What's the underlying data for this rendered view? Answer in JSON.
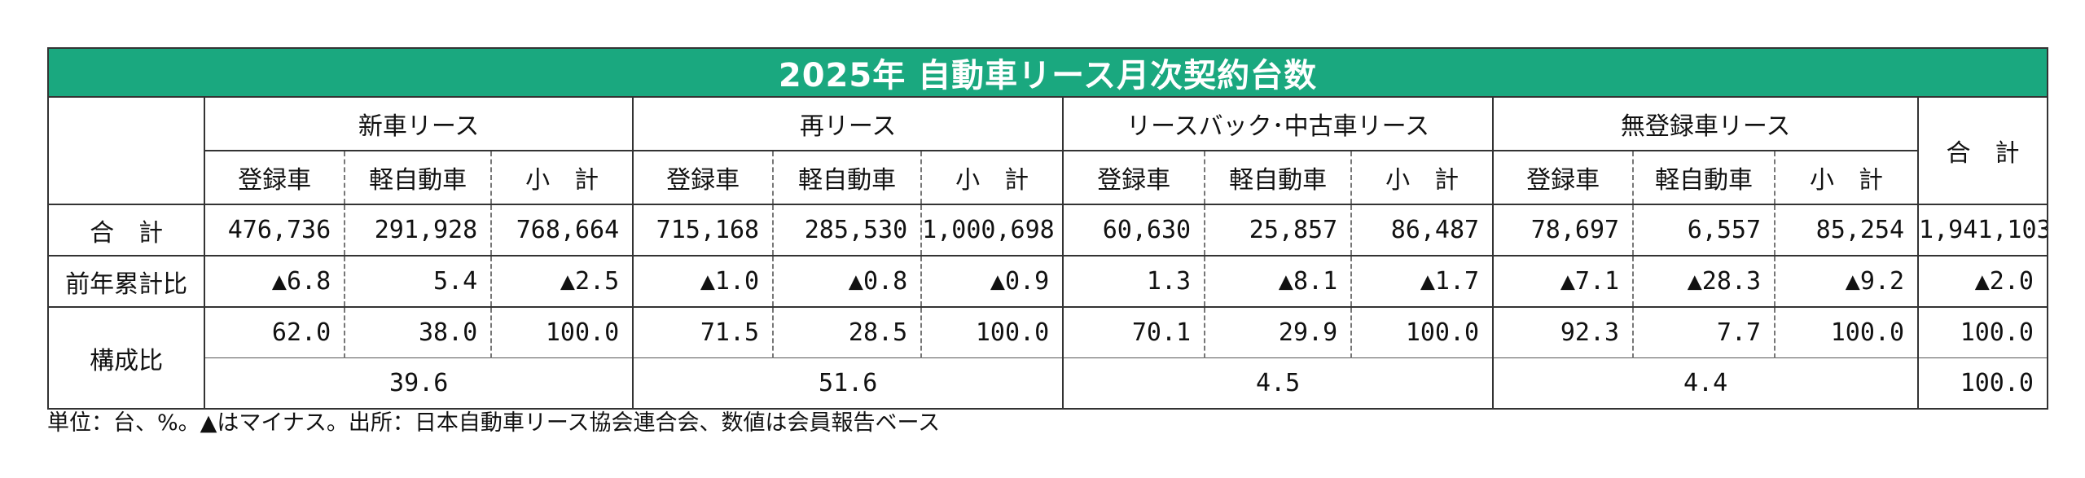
{
  "title": "2025年 自動車リース月次契約台数",
  "groups": [
    "新車リース",
    "再リース",
    "リースバック･中古車リース",
    "無登録車リース"
  ],
  "total_header": "合　計",
  "sub_headers": [
    "登録車",
    "軽自動車",
    "小　計"
  ],
  "rows": {
    "total": {
      "label": "合　計",
      "values": [
        "476,736",
        "291,928",
        "768,664",
        "715,168",
        "285,530",
        "1,000,698",
        "60,630",
        "25,857",
        "86,487",
        "78,697",
        "6,557",
        "85,254",
        "1,941,103"
      ]
    },
    "yoy": {
      "label": "前年累計比",
      "values": [
        "▲6.8",
        "5.4",
        "▲2.5",
        "▲1.0",
        "▲0.8",
        "▲0.9",
        "1.3",
        "▲8.1",
        "▲1.7",
        "▲7.1",
        "▲28.3",
        "▲9.2",
        "▲2.0"
      ]
    },
    "composition": {
      "label": "構成比",
      "values": [
        "62.0",
        "38.0",
        "100.0",
        "71.5",
        "28.5",
        "100.0",
        "70.1",
        "29.9",
        "100.0",
        "92.3",
        "7.7",
        "100.0",
        "100.0"
      ],
      "group_values": [
        "39.6",
        "51.6",
        "4.5",
        "4.4",
        "100.0"
      ]
    }
  },
  "note": "単位：台、%。▲はマイナス。出所：日本自動車リース協会連合会、数値は会員報告ベース"
}
